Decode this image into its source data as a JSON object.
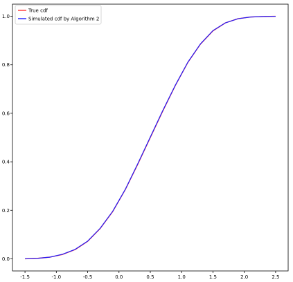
{
  "chart_data": {
    "type": "line",
    "title": "",
    "xlabel": "",
    "ylabel": "",
    "xlim": [
      -1.7,
      2.7
    ],
    "ylim": [
      -0.05,
      1.05
    ],
    "xticks": [
      "-1.5",
      "-1.0",
      "-0.5",
      "0.0",
      "0.5",
      "1.0",
      "1.5",
      "2.0",
      "2.5"
    ],
    "yticks": [
      "0.0",
      "0.2",
      "0.4",
      "0.6",
      "0.8",
      "1.0"
    ],
    "grid": false,
    "legend_position": "top-left",
    "x": [
      -1.5,
      -1.3,
      -1.1,
      -0.9,
      -0.7,
      -0.5,
      -0.3,
      -0.1,
      0.1,
      0.3,
      0.5,
      0.7,
      0.9,
      1.1,
      1.3,
      1.5,
      1.7,
      1.9,
      2.1,
      2.3,
      2.5
    ],
    "series": [
      {
        "name": "True cdf",
        "color": "#ff3333",
        "values": [
          0.0,
          0.002,
          0.007,
          0.018,
          0.038,
          0.072,
          0.125,
          0.195,
          0.285,
          0.39,
          0.5,
          0.61,
          0.715,
          0.81,
          0.885,
          0.94,
          0.973,
          0.99,
          0.997,
          0.999,
          1.0
        ]
      },
      {
        "name": "Simulated cdf by Algorithm 2",
        "color": "#1f1fff",
        "values": [
          0.0,
          0.002,
          0.007,
          0.019,
          0.039,
          0.073,
          0.126,
          0.196,
          0.286,
          0.392,
          0.502,
          0.612,
          0.716,
          0.811,
          0.886,
          0.941,
          0.973,
          0.99,
          0.997,
          0.999,
          1.0
        ]
      }
    ]
  }
}
